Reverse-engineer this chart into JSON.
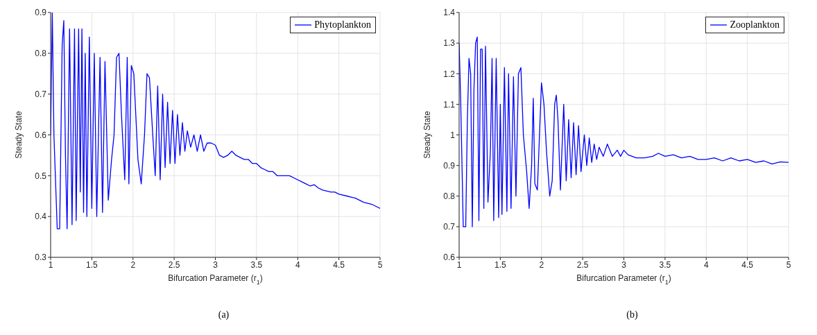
{
  "chart_data": [
    {
      "type": "line",
      "xlabel": "Bifurcation Parameter (r$_{1}$)",
      "ylabel": "Steady State",
      "xlim": [
        1,
        5
      ],
      "xticks": [
        1,
        1.5,
        2,
        2.5,
        3,
        3.5,
        4,
        4.5,
        5
      ],
      "ylim": [
        0.3,
        0.9
      ],
      "yticks": [
        0.3,
        0.4,
        0.5,
        0.6,
        0.7,
        0.8,
        0.9
      ],
      "grid": true,
      "legend": "top right",
      "marker": "none",
      "annotations": [
        "(a)"
      ],
      "series": [
        {
          "name": "Phytoplankton",
          "color": "#0000ff",
          "x": [
            1,
            1.02,
            1.04,
            1.08,
            1.11,
            1.14,
            1.16,
            1.18,
            1.2,
            1.23,
            1.26,
            1.29,
            1.31,
            1.34,
            1.36,
            1.38,
            1.4,
            1.42,
            1.44,
            1.47,
            1.5,
            1.53,
            1.56,
            1.6,
            1.63,
            1.66,
            1.7,
            1.74,
            1.77,
            1.8,
            1.83,
            1.86,
            1.9,
            1.93,
            1.95,
            1.98,
            2.01,
            2.06,
            2.1,
            2.14,
            2.17,
            2.2,
            2.24,
            2.27,
            2.3,
            2.33,
            2.36,
            2.39,
            2.42,
            2.45,
            2.48,
            2.51,
            2.54,
            2.57,
            2.6,
            2.63,
            2.66,
            2.7,
            2.74,
            2.78,
            2.82,
            2.86,
            2.9,
            2.95,
            3,
            3.05,
            3.1,
            3.15,
            3.2,
            3.25,
            3.3,
            3.35,
            3.4,
            3.45,
            3.5,
            3.55,
            3.6,
            3.65,
            3.7,
            3.75,
            3.8,
            3.85,
            3.9,
            4,
            4.05,
            4.1,
            4.15,
            4.2,
            4.25,
            4.3,
            4.4,
            4.45,
            4.5,
            4.6,
            4.7,
            4.8,
            4.9,
            5
          ],
          "values": [
            0.6,
            0.9,
            0.6,
            0.37,
            0.37,
            0.82,
            0.88,
            0.55,
            0.37,
            0.86,
            0.38,
            0.86,
            0.39,
            0.86,
            0.46,
            0.86,
            0.41,
            0.8,
            0.4,
            0.84,
            0.42,
            0.8,
            0.4,
            0.79,
            0.41,
            0.78,
            0.44,
            0.54,
            0.6,
            0.79,
            0.8,
            0.65,
            0.49,
            0.79,
            0.48,
            0.77,
            0.75,
            0.54,
            0.48,
            0.6,
            0.75,
            0.74,
            0.6,
            0.5,
            0.72,
            0.49,
            0.7,
            0.52,
            0.68,
            0.53,
            0.66,
            0.53,
            0.65,
            0.55,
            0.63,
            0.56,
            0.61,
            0.57,
            0.6,
            0.56,
            0.6,
            0.56,
            0.58,
            0.58,
            0.575,
            0.55,
            0.545,
            0.55,
            0.56,
            0.55,
            0.545,
            0.54,
            0.54,
            0.53,
            0.53,
            0.52,
            0.515,
            0.51,
            0.51,
            0.5,
            0.5,
            0.5,
            0.5,
            0.49,
            0.485,
            0.48,
            0.475,
            0.478,
            0.47,
            0.465,
            0.46,
            0.46,
            0.455,
            0.45,
            0.445,
            0.435,
            0.43,
            0.42
          ]
        }
      ]
    },
    {
      "type": "line",
      "xlabel": "Bifurcation Parameter (r$_{1}$)",
      "ylabel": "Steady State",
      "xlim": [
        1,
        5
      ],
      "xticks": [
        1,
        1.5,
        2,
        2.5,
        3,
        3.5,
        4,
        4.5,
        5
      ],
      "ylim": [
        0.6,
        1.4
      ],
      "yticks": [
        0.6,
        0.7,
        0.8,
        0.9,
        1,
        1.1,
        1.2,
        1.3,
        1.4
      ],
      "grid": true,
      "legend": "top right",
      "marker": "none",
      "annotations": [
        "(b)"
      ],
      "series": [
        {
          "name": "Zooplankton",
          "color": "#0000ff",
          "x": [
            1,
            1.02,
            1.05,
            1.08,
            1.1,
            1.12,
            1.14,
            1.16,
            1.18,
            1.2,
            1.22,
            1.24,
            1.26,
            1.28,
            1.3,
            1.32,
            1.35,
            1.38,
            1.4,
            1.42,
            1.45,
            1.48,
            1.5,
            1.52,
            1.55,
            1.58,
            1.6,
            1.63,
            1.66,
            1.69,
            1.72,
            1.75,
            1.78,
            1.82,
            1.85,
            1.88,
            1.9,
            1.92,
            1.95,
            2,
            2.03,
            2.06,
            2.1,
            2.13,
            2.16,
            2.18,
            2.2,
            2.23,
            2.27,
            2.3,
            2.33,
            2.36,
            2.39,
            2.42,
            2.45,
            2.48,
            2.52,
            2.55,
            2.58,
            2.61,
            2.64,
            2.67,
            2.7,
            2.75,
            2.8,
            2.86,
            2.92,
            2.96,
            3,
            3.05,
            3.15,
            3.25,
            3.35,
            3.42,
            3.5,
            3.6,
            3.7,
            3.8,
            3.9,
            4,
            4.1,
            4.2,
            4.3,
            4.4,
            4.5,
            4.6,
            4.7,
            4.8,
            4.9,
            5
          ],
          "values": [
            1.3,
            1.1,
            0.7,
            0.7,
            1.05,
            1.25,
            1.2,
            0.7,
            1.15,
            1.3,
            1.32,
            0.72,
            1.28,
            1.28,
            0.76,
            1.29,
            0.78,
            0.95,
            1.25,
            0.72,
            1.25,
            0.73,
            1.1,
            0.74,
            1.22,
            0.75,
            1.2,
            0.76,
            1.19,
            0.8,
            1.2,
            1.22,
            1,
            0.88,
            0.76,
            0.9,
            1.12,
            0.84,
            0.82,
            1.17,
            1.1,
            0.95,
            0.8,
            0.85,
            1.1,
            1.13,
            1.05,
            0.82,
            1.1,
            0.85,
            1.05,
            0.86,
            1.04,
            0.87,
            1.03,
            0.88,
            1,
            0.9,
            0.99,
            0.91,
            0.97,
            0.92,
            0.96,
            0.93,
            0.97,
            0.93,
            0.95,
            0.93,
            0.95,
            0.935,
            0.925,
            0.925,
            0.93,
            0.94,
            0.93,
            0.935,
            0.925,
            0.93,
            0.92,
            0.92,
            0.925,
            0.915,
            0.925,
            0.915,
            0.92,
            0.91,
            0.915,
            0.905,
            0.912,
            0.91
          ]
        }
      ]
    }
  ]
}
